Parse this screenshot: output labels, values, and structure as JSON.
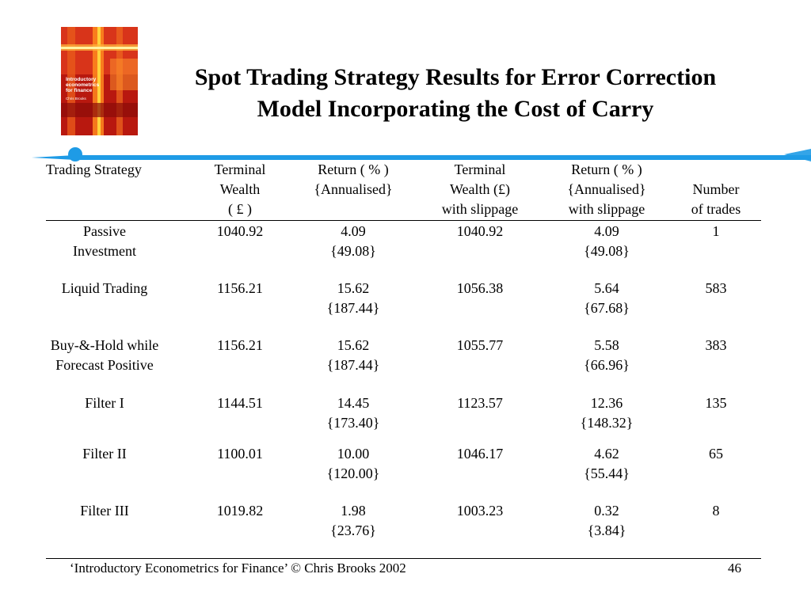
{
  "cover": {
    "title_line1": "Introductory",
    "title_line2": "econometrics",
    "title_line3": "for finance",
    "author": "Chris Brooks"
  },
  "title": {
    "line1": "Spot Trading Strategy Results for Error Correction",
    "line2": "Model Incorporating the Cost of Carry"
  },
  "table": {
    "headers": {
      "strategy": [
        "Trading Strategy"
      ],
      "terminal_wealth": [
        "Terminal",
        "Wealth",
        "( £ )"
      ],
      "return": [
        "Return ( % )",
        "{Annualised}"
      ],
      "terminal_wealth_slip": [
        "Terminal",
        "Wealth (£)",
        "with slippage"
      ],
      "return_slip": [
        "Return ( % )",
        "{Annualised}",
        "with slippage"
      ],
      "trades": [
        "Number",
        "of  trades"
      ]
    },
    "rows": [
      {
        "strategy": [
          "Passive",
          "Investment"
        ],
        "terminal_wealth": "1040.92",
        "return": "4.09",
        "return_annualised": "{49.08}",
        "terminal_wealth_slip": "1040.92",
        "return_slip": "4.09",
        "return_slip_annualised": "{49.08}",
        "trades": "1"
      },
      {
        "strategy": [
          "Liquid Trading",
          ""
        ],
        "terminal_wealth": "1156.21",
        "return": "15.62",
        "return_annualised": "{187.44}",
        "terminal_wealth_slip": "1056.38",
        "return_slip": "5.64",
        "return_slip_annualised": "{67.68}",
        "trades": "583"
      },
      {
        "strategy": [
          "Buy-&-Hold while",
          "Forecast Positive"
        ],
        "terminal_wealth": "1156.21",
        "return": "15.62",
        "return_annualised": "{187.44}",
        "terminal_wealth_slip": "1055.77",
        "return_slip": "5.58",
        "return_slip_annualised": "{66.96}",
        "trades": "383"
      },
      {
        "strategy": [
          "Filter I",
          ""
        ],
        "terminal_wealth": "1144.51",
        "return": "14.45",
        "return_annualised": "{173.40}",
        "terminal_wealth_slip": "1123.57",
        "return_slip": "12.36",
        "return_slip_annualised": "{148.32}",
        "trades": "135"
      },
      {
        "strategy": [
          "Filter II",
          ""
        ],
        "terminal_wealth": "1100.01",
        "return": "10.00",
        "return_annualised": "{120.00}",
        "terminal_wealth_slip": "1046.17",
        "return_slip": "4.62",
        "return_slip_annualised": "{55.44}",
        "trades": "65"
      },
      {
        "strategy": [
          "Filter III",
          ""
        ],
        "terminal_wealth": "1019.82",
        "return": "1.98",
        "return_annualised": "{23.76}",
        "terminal_wealth_slip": "1003.23",
        "return_slip": "0.32",
        "return_slip_annualised": "{3.84}",
        "trades": "8"
      }
    ]
  },
  "footer": {
    "citation": "‘Introductory Econometrics for Finance’ © Chris Brooks 2002",
    "page_number": "46"
  },
  "colors": {
    "accent": "#1e9be6",
    "cover_red": "#c81e12",
    "cover_orange": "#ff8a1e",
    "cover_yellow": "#ffd23c"
  }
}
